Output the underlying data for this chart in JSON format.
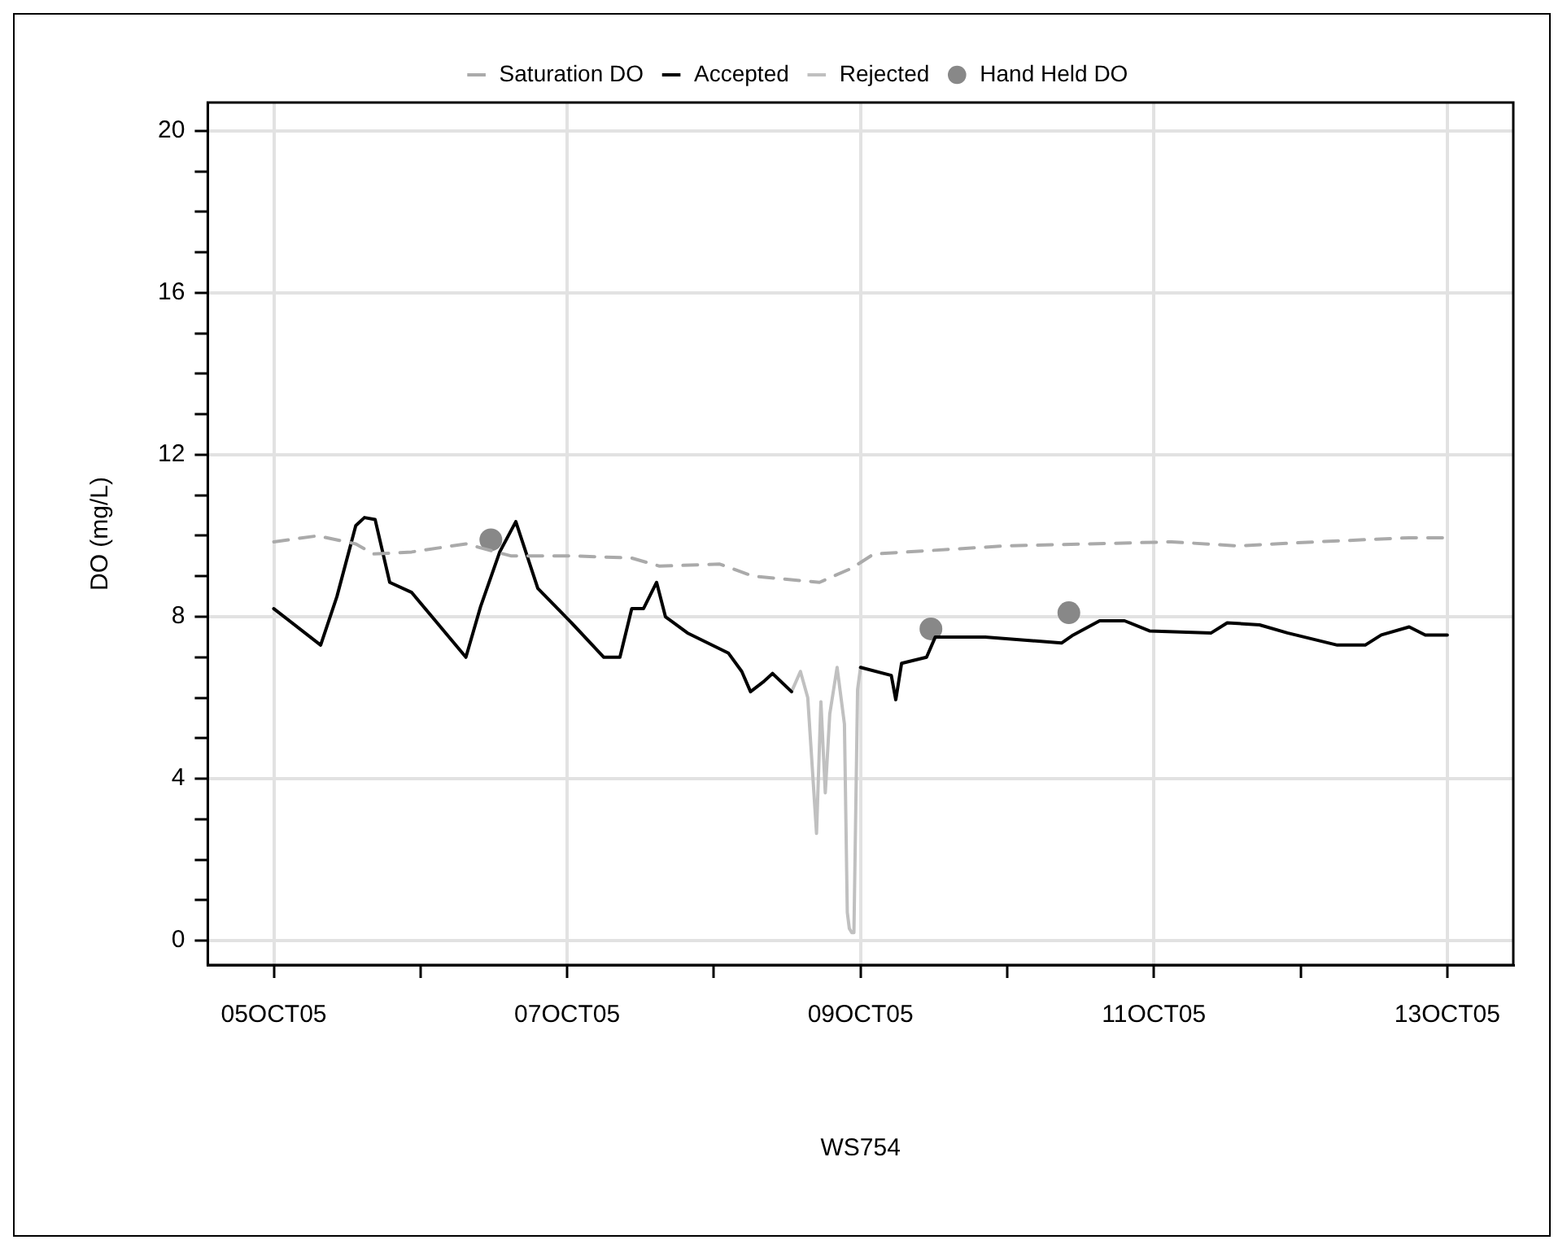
{
  "chart_data": {
    "type": "line",
    "xlabel": "WS754",
    "ylabel": "DO (mg/L)",
    "xlim": [
      "--10-04T13:12",
      "--10-13T10:48"
    ],
    "xticks": [
      {
        "value": "--10-05",
        "label": "05OCT05"
      },
      {
        "value": "--10-06",
        "label": null
      },
      {
        "value": "--10-07",
        "label": "07OCT05"
      },
      {
        "value": "--10-08",
        "label": null
      },
      {
        "value": "--10-09",
        "label": "09OCT05"
      },
      {
        "value": "--10-10",
        "label": null
      },
      {
        "value": "--10-11",
        "label": "11OCT05"
      },
      {
        "value": "--10-12",
        "label": null
      },
      {
        "value": "--10-13",
        "label": "13OCT05"
      }
    ],
    "ylim": [
      -0.6,
      20.7
    ],
    "yticks": [
      0,
      {
        "value": 1,
        "label": null
      },
      {
        "value": 2,
        "label": null
      },
      {
        "value": 3,
        "label": null
      },
      4,
      {
        "value": 5,
        "label": null
      },
      {
        "value": 6,
        "label": null
      },
      {
        "value": 7,
        "label": null
      },
      8,
      {
        "value": 9,
        "label": null
      },
      {
        "value": 10,
        "label": null
      },
      {
        "value": 11,
        "label": null
      },
      12,
      {
        "value": 13,
        "label": null
      },
      {
        "value": 14,
        "label": null
      },
      {
        "value": 15,
        "label": null
      },
      16,
      {
        "value": 17,
        "label": null
      },
      {
        "value": 18,
        "label": null
      },
      {
        "value": 19,
        "label": null
      },
      20
    ],
    "grid": true,
    "legend": "top",
    "marker": "none",
    "series": [
      {
        "name": "Saturation DO",
        "type": "line",
        "color": "#aaaaaa",
        "line_style": "dashed",
        "x": [
          "--10-05T00:00",
          "--10-05T07:12",
          "--10-05T13:25",
          "--10-05T16:19",
          "--10-05T22:34",
          "--10-06T07:26",
          "--10-06T14:53",
          "--10-07T01:41",
          "--10-07T10:34",
          "--10-07T15:07",
          "--10-08T00:58",
          "--10-08T06:29",
          "--10-08T17:17",
          "--10-08T22:34",
          "--10-09T02:10",
          "--10-09T23:46",
          "--10-11T02:53",
          "--10-11T13:41",
          "--10-12T02:24",
          "--10-12T17:46",
          "--10-12T23:46"
        ],
        "values": [
          9.85,
          10.0,
          9.8,
          9.55,
          9.6,
          9.8,
          9.5,
          9.5,
          9.45,
          9.25,
          9.3,
          9.0,
          8.85,
          9.2,
          9.55,
          9.75,
          9.85,
          9.75,
          9.85,
          9.95,
          9.95
        ]
      },
      {
        "name": "Accepted",
        "type": "line",
        "color": "#000000",
        "line_style": "solid",
        "x": [
          "--10-05T00:00",
          "--10-05T07:40",
          "--10-05T10:20",
          "--10-05T13:25",
          "--10-05T14:50",
          "--10-05T16:35",
          "--10-05T18:58",
          "--10-05T22:34",
          "--10-06T07:26",
          "--10-06T09:50",
          "--10-06T12:58",
          "--10-06T15:36",
          "--10-06T19:12",
          "--10-07T00:43",
          "--10-07T06:00",
          "--10-07T08:38",
          "--10-07T10:34",
          "--10-07T12:29",
          "--10-07T14:38",
          "--10-07T16:05",
          "--10-07T19:41",
          "--10-08T02:24",
          "--10-08T04:34",
          "--10-08T06:00",
          "--10-08T08:10",
          "--10-08T09:36",
          "--10-08T12:43",
          "--10-08T18:00",
          "--10-09T00:00",
          "--10-09T05:02",
          "--10-09T05:46",
          "--10-09T06:43",
          "--10-09T10:48",
          "--10-09T12:14",
          "--10-09T20:24",
          "--10-10T08:53",
          "--10-10T10:48",
          "--10-10T15:07",
          "--10-10T19:12",
          "--10-10T23:17",
          "--10-11T09:22",
          "--10-11T12:00",
          "--10-11T17:17",
          "--10-11T21:50",
          "--10-12T06:00",
          "--10-12T10:34",
          "--10-12T13:12",
          "--10-12T17:46",
          "--10-12T20:24",
          "--10-13T00:00"
        ],
        "values": [
          8.2,
          7.3,
          8.5,
          10.25,
          10.45,
          10.4,
          8.85,
          8.6,
          7.0,
          8.25,
          9.6,
          10.35,
          8.7,
          7.85,
          7.0,
          7.0,
          8.2,
          8.2,
          8.85,
          8.0,
          7.6,
          7.1,
          6.65,
          6.15,
          6.4,
          6.6,
          6.15,
          null,
          6.75,
          6.55,
          5.95,
          6.85,
          7.0,
          7.5,
          7.5,
          7.35,
          7.55,
          7.9,
          7.9,
          7.65,
          7.6,
          7.85,
          7.8,
          7.6,
          7.3,
          7.3,
          7.55,
          7.75,
          7.55,
          7.55
        ]
      },
      {
        "name": "Rejected",
        "type": "line",
        "color": "#c0c0c0",
        "line_style": "solid",
        "x": [
          "--10-08T12:43",
          "--10-08T14:10",
          "--10-08T15:22",
          "--10-08T16:48",
          "--10-08T17:31",
          "--10-08T18:14",
          "--10-08T18:58",
          "--10-08T20:10",
          "--10-08T21:22",
          "--10-08T21:50",
          "--10-08T22:10",
          "--10-08T22:34",
          "--10-08T22:55",
          "--10-08T23:31",
          "--10-09T00:00"
        ],
        "values": [
          6.15,
          6.65,
          6.0,
          2.65,
          5.9,
          3.65,
          5.6,
          6.75,
          5.35,
          0.7,
          0.3,
          0.2,
          0.2,
          6.2,
          6.75
        ]
      },
      {
        "name": "Hand Held DO",
        "type": "scatter",
        "color": "#888888",
        "marker": "circle",
        "x": [
          "--10-06T11:31",
          "--10-09T11:31",
          "--10-10T10:05"
        ],
        "values": [
          9.9,
          7.7,
          8.1
        ]
      }
    ]
  }
}
